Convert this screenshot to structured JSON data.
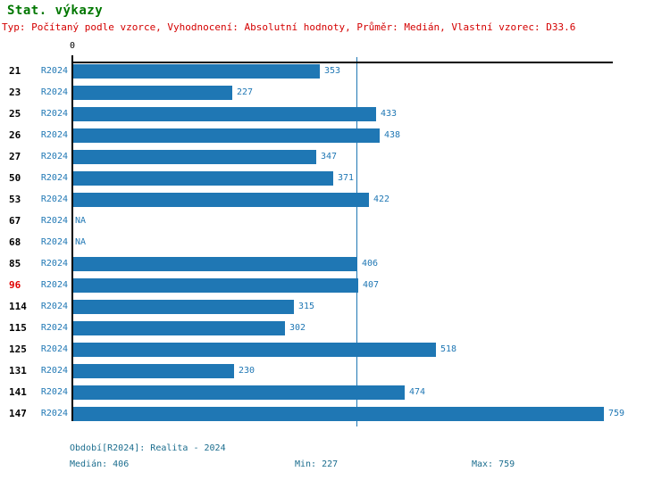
{
  "header": {
    "title": "Stat. výkazy",
    "subtitle": "Typ: Počítaný podle vzorce, Vyhodnocení: Absolutní hodnoty, Průměr: Medián, Vlastní vzorec: D33.6"
  },
  "chart_data": {
    "type": "bar",
    "orientation": "horizontal",
    "title": "Stat. výkazy",
    "origin_tick_label": "0",
    "series_label": "R2024",
    "na_label": "NA",
    "categories": [
      "21",
      "23",
      "25",
      "26",
      "27",
      "50",
      "53",
      "67",
      "68",
      "85",
      "96",
      "114",
      "115",
      "125",
      "131",
      "141",
      "147"
    ],
    "values": [
      353,
      227,
      433,
      438,
      347,
      371,
      422,
      null,
      null,
      406,
      407,
      315,
      302,
      518,
      230,
      474,
      759
    ],
    "highlighted_category": "96",
    "median_reference_line": 406,
    "xlim": [
      0,
      771
    ],
    "grid": false,
    "legend": false,
    "colors": {
      "bar": "#1f77b4",
      "value_label": "#1f77b4",
      "series_label": "#1f77b4",
      "category_label": "#000000",
      "highlighted_category_label": "#e00000",
      "title": "#007700",
      "subtitle": "#d40000",
      "footer_text": "#1b6d8e"
    }
  },
  "footer": {
    "period": "Období[R2024]: Realita - 2024",
    "median": "Medián: 406",
    "min": "Min: 227",
    "max": "Max: 759"
  }
}
